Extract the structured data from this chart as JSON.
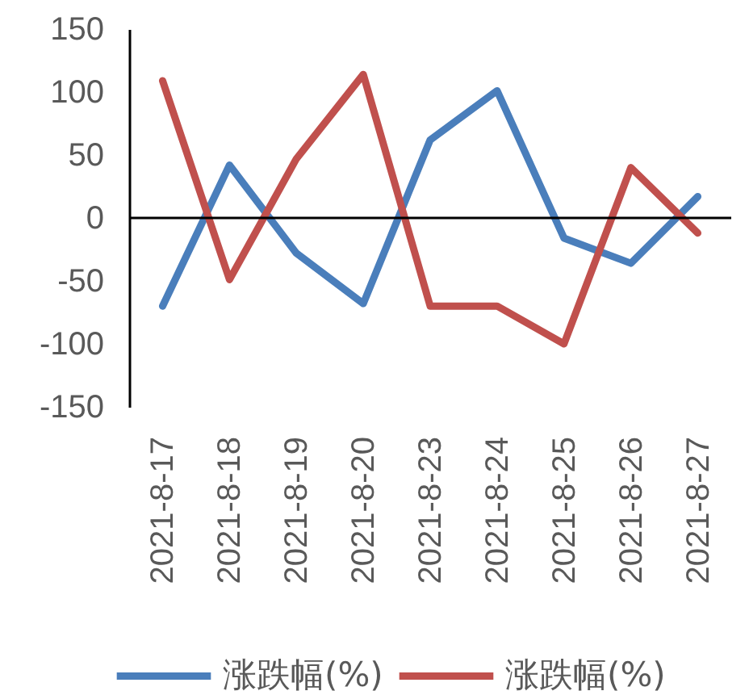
{
  "chart_data": {
    "type": "line",
    "categories": [
      "2021-8-17",
      "2021-8-18",
      "2021-8-19",
      "2021-8-20",
      "2021-8-23",
      "2021-8-24",
      "2021-8-25",
      "2021-8-26",
      "2021-8-27"
    ],
    "series": [
      {
        "name": "涨跌幅(%)",
        "color": "#4a7ebb",
        "values": [
          -70,
          42,
          -28,
          -68,
          62,
          101,
          -16,
          -36,
          17
        ]
      },
      {
        "name": "涨跌幅(%)",
        "color": "#c0504d",
        "values": [
          109,
          -49,
          47,
          114,
          -70,
          -70,
          -100,
          40,
          -12
        ]
      }
    ],
    "ylim": [
      -150,
      150
    ],
    "yticks": [
      -150,
      -100,
      -50,
      0,
      50,
      100,
      150
    ],
    "legend": "bottom",
    "marker": "none",
    "line_style": "solid",
    "ref_lines": [
      {
        "axis": "y",
        "value": 0,
        "color": "#000000"
      }
    ]
  }
}
